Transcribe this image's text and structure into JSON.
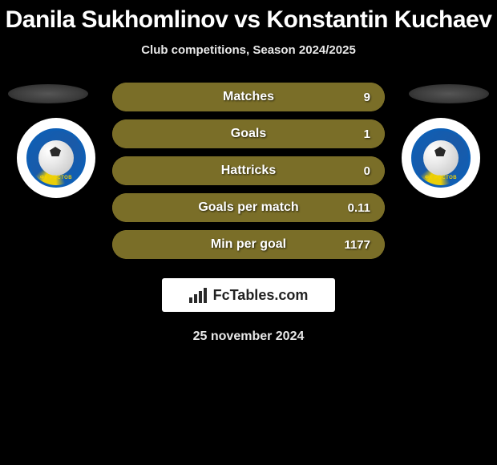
{
  "title": "Danila Sukhomlinov vs Konstantin Kuchaev",
  "subtitle": "Club competitions, Season 2024/2025",
  "date": "25 november 2024",
  "footer_brand": "FcTables.com",
  "bar_bg_color": "#b09b33",
  "bar_fill_color": "#7a6e28",
  "stats": [
    {
      "label": "Matches",
      "value": "9",
      "fill_width": 100
    },
    {
      "label": "Goals",
      "value": "1",
      "fill_width": 100
    },
    {
      "label": "Hattricks",
      "value": "0",
      "fill_width": 100
    },
    {
      "label": "Goals per match",
      "value": "0.11",
      "fill_width": 100
    },
    {
      "label": "Min per goal",
      "value": "1177",
      "fill_width": 100
    }
  ],
  "logo": {
    "primary_color": "#0e5fb5",
    "accent_color": "#f5d400",
    "text": "ФК РОСТОВ"
  }
}
